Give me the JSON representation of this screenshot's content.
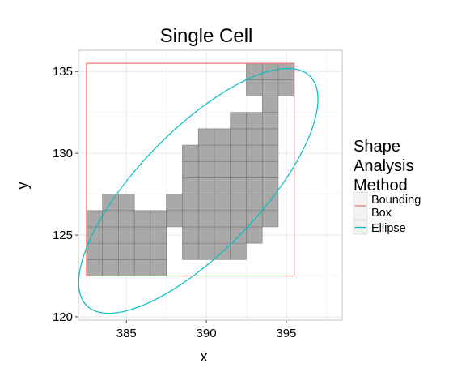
{
  "chart_data": {
    "type": "scatter",
    "title": "Single Cell",
    "xlabel": "x",
    "ylabel": "y",
    "xlim": [
      382,
      398.5
    ],
    "ylim": [
      119.8,
      136.3
    ],
    "x_ticks": [
      385,
      390,
      395
    ],
    "y_ticks": [
      120,
      125,
      130,
      135
    ],
    "grid": true,
    "legend": {
      "title_lines": [
        "Shape",
        "Analysis",
        "Method"
      ],
      "placement": "right",
      "entries": [
        {
          "label_lines": [
            "Bounding",
            "Box"
          ],
          "color": "#F8766D"
        },
        {
          "label_lines": [
            "Ellipse"
          ],
          "color": "#00BFC4"
        }
      ]
    },
    "cells": {
      "fill": "#a9a9a9",
      "stroke": "#6e6e6e",
      "size": 1,
      "rows": [
        {
          "y": 123,
          "x": [
            383,
            384,
            385,
            386,
            387
          ]
        },
        {
          "y": 124,
          "x": [
            383,
            384,
            385,
            386,
            387,
            389,
            390,
            391,
            392
          ]
        },
        {
          "y": 125,
          "x": [
            383,
            384,
            385,
            386,
            387,
            389,
            390,
            391,
            392,
            393
          ]
        },
        {
          "y": 126,
          "x": [
            383,
            384,
            385,
            386,
            387,
            388,
            389,
            390,
            391,
            392,
            393,
            394
          ]
        },
        {
          "y": 127,
          "x": [
            384,
            385,
            388,
            389,
            390,
            391,
            392,
            393,
            394
          ]
        },
        {
          "y": 128,
          "x": [
            389,
            390,
            391,
            392,
            393,
            394
          ]
        },
        {
          "y": 129,
          "x": [
            389,
            390,
            391,
            392,
            393,
            394
          ]
        },
        {
          "y": 130,
          "x": [
            389,
            390,
            391,
            392,
            393,
            394
          ]
        },
        {
          "y": 131,
          "x": [
            390,
            391,
            392,
            393,
            394
          ]
        },
        {
          "y": 132,
          "x": [
            392,
            393,
            394
          ]
        },
        {
          "y": 133,
          "x": [
            394
          ]
        },
        {
          "y": 134,
          "x": [
            393,
            394,
            395
          ]
        },
        {
          "y": 135,
          "x": [
            393,
            394,
            395
          ]
        }
      ]
    },
    "bounding_box": {
      "xmin": 382.5,
      "xmax": 395.5,
      "ymin": 122.5,
      "ymax": 135.5,
      "color": "#F8766D"
    },
    "ellipse": {
      "cx": 389.5,
      "cy": 127.7,
      "a": 9.9,
      "b": 3.75,
      "angle_deg": 45,
      "color": "#00BFC4"
    }
  }
}
